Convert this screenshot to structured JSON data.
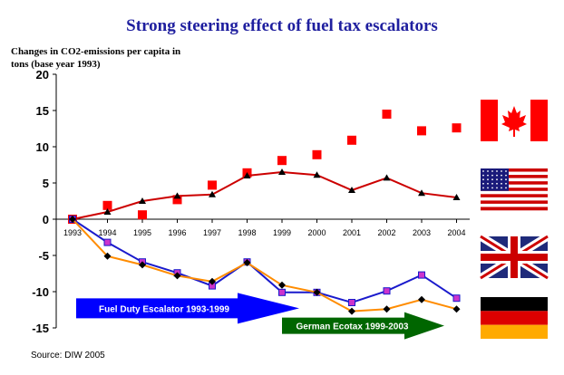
{
  "chart_data": {
    "type": "line",
    "title": "Strong steering effect of fuel tax escalators",
    "ylabel": "Changes in CO2-emissions per capita in tons (base year 1993)",
    "xlabel": "",
    "ylim": [
      -15,
      20
    ],
    "yticks": [
      -15,
      -10,
      -5,
      0,
      5,
      10,
      15,
      20
    ],
    "ytick_labels": [
      "-15",
      "-10",
      "-5",
      "0",
      "5",
      "10",
      "15",
      "20"
    ],
    "categories": [
      "1993",
      "1994",
      "1995",
      "1996",
      "1997",
      "1998",
      "1999",
      "2000",
      "2001",
      "2002",
      "2003",
      "2004"
    ],
    "grid": false,
    "legend": "flags-right",
    "series": [
      {
        "flag": "canada",
        "style": "markers",
        "color": "#ff0000",
        "values": [
          0,
          1.9,
          0.6,
          2.7,
          4.7,
          6.4,
          8.1,
          8.9,
          10.9,
          14.5,
          12.2,
          12.6
        ]
      },
      {
        "flag": "usa",
        "style": "line-markers",
        "color": "#cc0000",
        "marker_color": "#000000",
        "values": [
          0,
          1.0,
          2.5,
          3.2,
          3.4,
          6.0,
          6.5,
          6.1,
          4.0,
          5.7,
          3.6,
          3.0
        ]
      },
      {
        "flag": "uk",
        "style": "line-markers",
        "color": "#1a1acc",
        "marker_color": "#cc33cc",
        "values": [
          0,
          -3.2,
          -5.9,
          -7.4,
          -9.2,
          -5.9,
          -10.1,
          -10.1,
          -11.5,
          -9.9,
          -7.7,
          -10.9
        ]
      },
      {
        "flag": "germany",
        "style": "line-markers",
        "color": "#ff8c00",
        "marker_color": "#000000",
        "values": [
          0,
          -5.1,
          -6.3,
          -7.8,
          -8.6,
          -6.0,
          -9.1,
          -10.1,
          -12.7,
          -12.4,
          -11.1,
          -12.4
        ]
      }
    ],
    "annotations": [
      {
        "text": "Fuel Duty Escalator 1993-1999",
        "color": "#0000ff",
        "from": "1993",
        "to": "1999",
        "y": -12.3
      },
      {
        "text": "German Ecotax 1999-2003",
        "color": "#006600",
        "from": "1999",
        "to": "2003",
        "y": -14.7
      }
    ],
    "source": "Source: DIW 2005"
  },
  "flags": [
    "canada",
    "usa",
    "uk",
    "germany"
  ]
}
